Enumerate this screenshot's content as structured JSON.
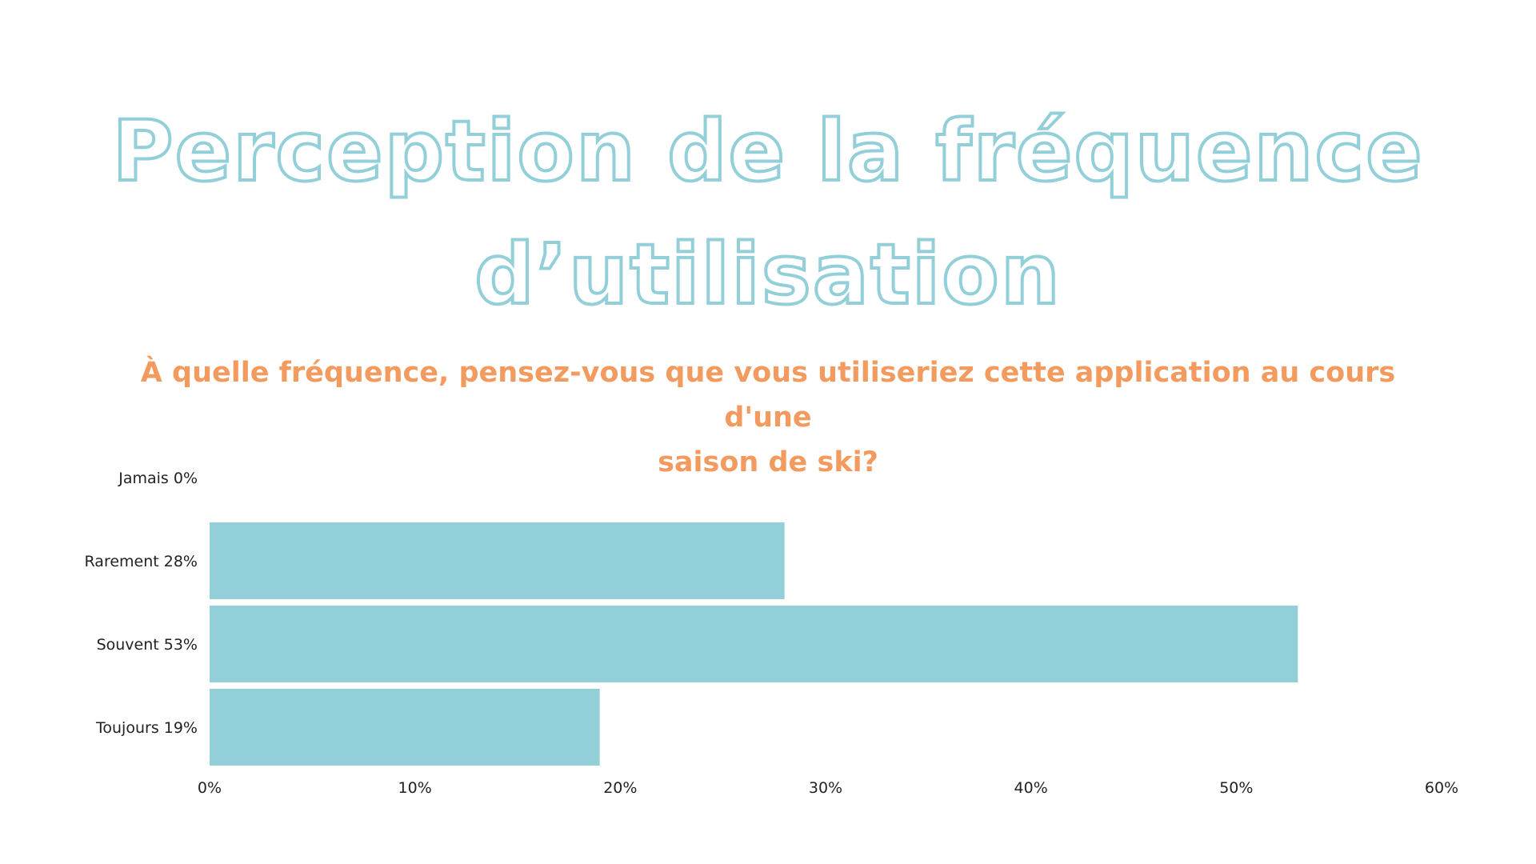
{
  "title_lines": [
    "Perception de la fréquence",
    "d’utilisation"
  ],
  "question_lines": [
    "À quelle fréquence, pensez-vous que vous utiliseriez cette application au cours d'une",
    "saison de ski?"
  ],
  "colors": {
    "bar": "#93cfd8",
    "title_outline": "#93cfd8",
    "question": "#f39a5e",
    "text": "#222222"
  },
  "chart_data": {
    "type": "bar",
    "orientation": "horizontal",
    "categories": [
      "Jamais 0%",
      "Rarement 28%",
      "Souvent 53%",
      "Toujours 19%"
    ],
    "values": [
      0,
      28,
      53,
      19
    ],
    "xlim": [
      0,
      60
    ],
    "x_ticks": [
      0,
      10,
      20,
      30,
      40,
      50,
      60
    ],
    "x_tick_labels": [
      "0%",
      "10%",
      "20%",
      "30%",
      "40%",
      "50%",
      "60%"
    ],
    "grid": false,
    "legend": "none"
  }
}
